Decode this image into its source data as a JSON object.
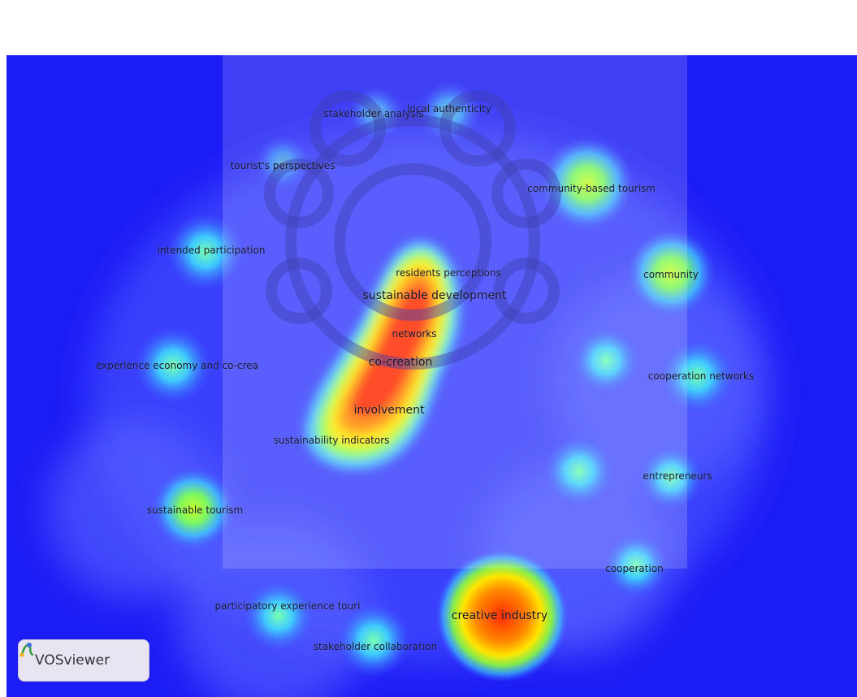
{
  "tool": {
    "name": "VOSviewer",
    "logo_icon": "vosviewer-logo-icon"
  },
  "colors": {
    "background": "#1c1cf5",
    "low": "#3fd8ff",
    "mid": "#9cff3a",
    "high": "#ffe000",
    "peak": "#ff2a00"
  },
  "chart_data": {
    "type": "heatmap",
    "title": "",
    "keywords": [
      {
        "label": "stakeholder analysis",
        "density": 0.15
      },
      {
        "label": "local authenticity",
        "density": 0.2
      },
      {
        "label": "tourist's perspectives",
        "density": 0.15
      },
      {
        "label": "community-based tourism",
        "density": 0.5
      },
      {
        "label": "intended participation",
        "density": 0.35
      },
      {
        "label": "residents perceptions",
        "density": 0.95
      },
      {
        "label": "sustainable development",
        "density": 0.95
      },
      {
        "label": "community",
        "density": 0.5
      },
      {
        "label": "networks",
        "density": 0.95
      },
      {
        "label": "experience economy and co-crea",
        "density": 0.35
      },
      {
        "label": "co-creation",
        "density": 1.0
      },
      {
        "label": "cooperation networks",
        "density": 0.35
      },
      {
        "label": "involvement",
        "density": 1.0
      },
      {
        "label": "sustainability indicators",
        "density": 0.9
      },
      {
        "label": "entrepreneurs",
        "density": 0.3
      },
      {
        "label": "sustainable tourism",
        "density": 0.55
      },
      {
        "label": "cooperation",
        "density": 0.3
      },
      {
        "label": "participatory experience touri",
        "density": 0.3
      },
      {
        "label": "creative industry",
        "density": 0.95
      },
      {
        "label": "stakeholder collaboration",
        "density": 0.3
      }
    ]
  }
}
